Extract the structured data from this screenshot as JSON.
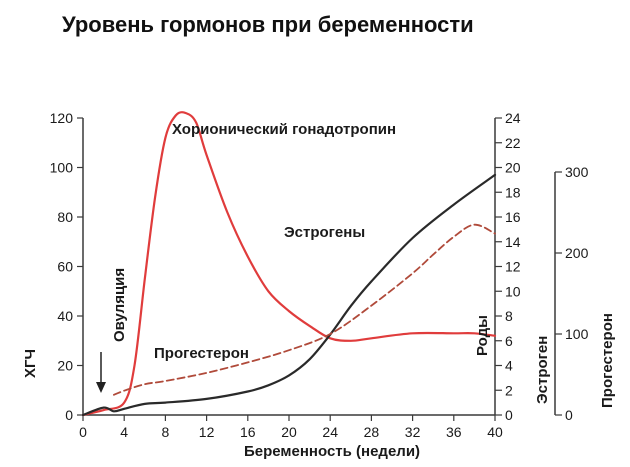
{
  "page": {
    "title": "Уровень гормонов при беременности"
  },
  "chart_data": {
    "type": "line",
    "xlabel": "Беременность (недели)",
    "xlim": [
      0,
      40
    ],
    "x_ticks": [
      0,
      4,
      8,
      12,
      16,
      20,
      24,
      28,
      32,
      36,
      40
    ],
    "axes": {
      "left": {
        "label": "ХГЧ",
        "ylim": [
          0,
          120
        ],
        "ticks": [
          0,
          20,
          40,
          60,
          80,
          100,
          120
        ]
      },
      "right_inner": {
        "label": "Эстроген",
        "ylim": [
          0,
          24
        ],
        "ticks": [
          0,
          2,
          4,
          6,
          8,
          10,
          12,
          14,
          16,
          18,
          20,
          22,
          24
        ]
      },
      "right_outer": {
        "label": "Прогестерон",
        "ylim": [
          0,
          300
        ],
        "ticks": [
          0,
          100,
          200,
          300
        ]
      }
    },
    "series": [
      {
        "name": "Хорионический гонадотропин",
        "axis": "left",
        "color": "#e03c3c",
        "style": "solid",
        "x": [
          0,
          2,
          4,
          5,
          6,
          7,
          8,
          9,
          10,
          11,
          12,
          14,
          16,
          18,
          20,
          22,
          24,
          26,
          28,
          32,
          36,
          38,
          40
        ],
        "y": [
          0,
          2,
          5,
          20,
          55,
          88,
          112,
          121,
          122,
          118,
          105,
          82,
          64,
          50,
          42,
          36,
          31,
          30,
          31,
          33,
          33,
          33,
          32
        ]
      },
      {
        "name": "Эстрогены",
        "axis": "right_inner",
        "color": "#2a2a2a",
        "style": "solid",
        "x": [
          0,
          2,
          3,
          4,
          6,
          8,
          12,
          16,
          18,
          20,
          22,
          24,
          26,
          28,
          32,
          36,
          40
        ],
        "y": [
          0,
          0.6,
          0.3,
          0.5,
          0.9,
          1.0,
          1.3,
          1.9,
          2.4,
          3.2,
          4.5,
          6.5,
          8.8,
          10.8,
          14.3,
          17.0,
          19.4
        ]
      },
      {
        "name": "Прогестерон",
        "axis": "right_outer",
        "color": "#b04a3a",
        "style": "dashed",
        "x": [
          3,
          4,
          6,
          8,
          12,
          16,
          20,
          24,
          28,
          32,
          34,
          36,
          38,
          40
        ],
        "y": [
          25,
          30,
          38,
          42,
          52,
          65,
          80,
          100,
          135,
          175,
          198,
          220,
          235,
          224
        ]
      }
    ],
    "annotations": {
      "ovulation": "Овуляция",
      "birth": "Роды",
      "hcg_label": "Хорионический гонадотропин",
      "estrogen_label": "Эстрогены",
      "progesterone_label": "Прогестерон"
    },
    "grid": false,
    "legend": "none"
  }
}
